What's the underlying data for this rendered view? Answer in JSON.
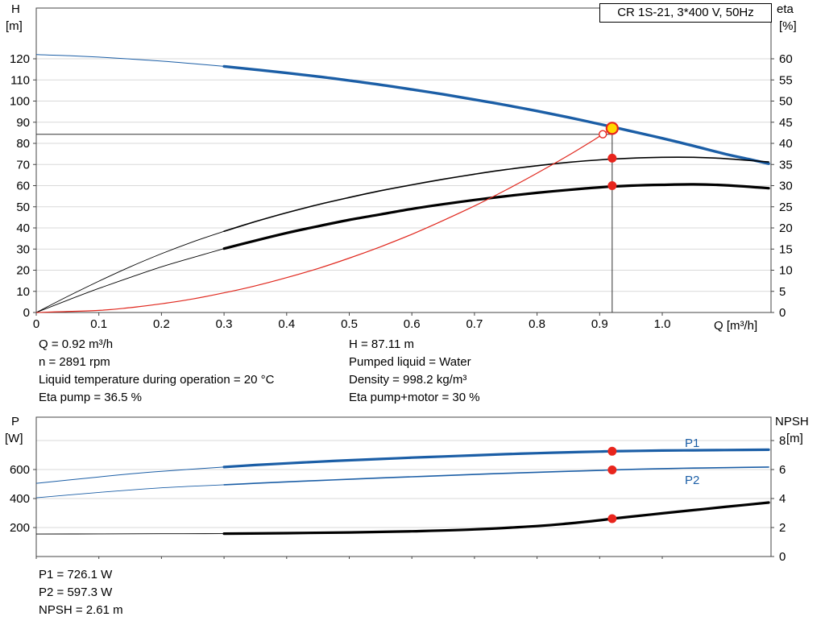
{
  "axes": {
    "top_left_label": "H",
    "top_left_unit": "[m]",
    "top_right_label": "eta",
    "top_right_unit": "[%]",
    "top_x_label": "Q [m³/h]",
    "bottom_left_label": "P",
    "bottom_left_unit": "[W]",
    "bottom_right_label": "NPSH",
    "bottom_right_unit": "[m]"
  },
  "info_top_left": [
    "Q = 0.92 m³/h",
    "n = 2891 rpm",
    "Liquid temperature during operation = 20 °C",
    "Eta pump = 36.5 %"
  ],
  "info_top_right": [
    "H = 87.11 m",
    "Pumped liquid = Water",
    "Density = 998.2 kg/m³",
    "Eta pump+motor = 30 %"
  ],
  "info_bottom": [
    "P1 = 726.1 W",
    "P2 = 597.3 W",
    "NPSH = 2.61 m"
  ],
  "colors": {
    "curve_blue": "#1b5ea6",
    "curve_black": "#000000",
    "curve_red": "#e0281e",
    "marker_red": "#e8251d",
    "duty_yellow": "#ffd800",
    "grid": "#d9d9d9",
    "frame": "#444444"
  },
  "chart_data": [
    {
      "type": "line",
      "title": "CR 1S-21, 3*400 V, 50Hz",
      "xlabel": "Q [m³/h]",
      "xlim": [
        0,
        1.174
      ],
      "x_ticks": [
        0,
        0.1,
        0.2,
        0.3,
        0.4,
        0.5,
        0.6,
        0.7,
        0.8,
        0.9,
        1.0
      ],
      "x_tick_labels": [
        "0",
        "0.1",
        "0.2",
        "0.3",
        "0.4",
        "0.5",
        "0.6",
        "0.7",
        "0.8",
        "0.9",
        "1.0"
      ],
      "left_axis": {
        "label": "H [m]",
        "ticks": [
          0,
          10,
          20,
          30,
          40,
          50,
          60,
          70,
          80,
          90,
          100,
          110,
          120
        ],
        "lim": [
          0,
          144
        ]
      },
      "right_axis": {
        "label": "eta [%]",
        "ticks": [
          0,
          5,
          10,
          15,
          20,
          25,
          30,
          35,
          40,
          45,
          50,
          55,
          60
        ],
        "lim": [
          0,
          72
        ]
      },
      "grid": "horizontal",
      "series": [
        {
          "name": "H",
          "axis": "left",
          "color_key": "curve_blue",
          "width": 3.4,
          "thin_until": 0.3,
          "thin_width": 1,
          "points": [
            [
              0,
              122
            ],
            [
              0.05,
              121.5
            ],
            [
              0.1,
              120.8
            ],
            [
              0.15,
              119.9
            ],
            [
              0.2,
              118.9
            ],
            [
              0.25,
              117.7
            ],
            [
              0.3,
              116.4
            ],
            [
              0.35,
              114.9
            ],
            [
              0.4,
              113.3
            ],
            [
              0.45,
              111.6
            ],
            [
              0.5,
              109.7
            ],
            [
              0.55,
              107.7
            ],
            [
              0.6,
              105.5
            ],
            [
              0.65,
              103.2
            ],
            [
              0.7,
              100.7
            ],
            [
              0.75,
              98.1
            ],
            [
              0.8,
              95.3
            ],
            [
              0.85,
              92.3
            ],
            [
              0.9,
              89.1
            ],
            [
              0.92,
              87.8
            ],
            [
              0.95,
              85.8
            ],
            [
              1,
              82.4
            ],
            [
              1.05,
              78.8
            ],
            [
              1.1,
              75
            ],
            [
              1.14,
              72.4
            ],
            [
              1.17,
              70.4
            ]
          ]
        },
        {
          "name": "eta pump",
          "axis": "right",
          "color_key": "curve_black",
          "width": 1.6,
          "thin_until": 0.3,
          "thin_width": 0.9,
          "points": [
            [
              0,
              0
            ],
            [
              0.05,
              3.8
            ],
            [
              0.1,
              7.4
            ],
            [
              0.15,
              10.8
            ],
            [
              0.2,
              13.9
            ],
            [
              0.25,
              16.7
            ],
            [
              0.3,
              19.2
            ],
            [
              0.35,
              21.5
            ],
            [
              0.4,
              23.6
            ],
            [
              0.45,
              25.5
            ],
            [
              0.5,
              27.2
            ],
            [
              0.55,
              28.8
            ],
            [
              0.6,
              30.2
            ],
            [
              0.65,
              31.5
            ],
            [
              0.7,
              32.7
            ],
            [
              0.75,
              33.8
            ],
            [
              0.8,
              34.7
            ],
            [
              0.85,
              35.5
            ],
            [
              0.9,
              36.1
            ],
            [
              0.95,
              36.5
            ],
            [
              1,
              36.7
            ],
            [
              1.05,
              36.7
            ],
            [
              1.1,
              36.4
            ],
            [
              1.17,
              35.6
            ]
          ]
        },
        {
          "name": "eta pump+motor",
          "axis": "right",
          "color_key": "curve_black",
          "width": 3.2,
          "thin_until": 0.3,
          "thin_width": 0.9,
          "points": [
            [
              0,
              0
            ],
            [
              0.05,
              2.9
            ],
            [
              0.1,
              5.7
            ],
            [
              0.15,
              8.3
            ],
            [
              0.2,
              10.8
            ],
            [
              0.25,
              13
            ],
            [
              0.3,
              15.1
            ],
            [
              0.35,
              17
            ],
            [
              0.4,
              18.8
            ],
            [
              0.45,
              20.4
            ],
            [
              0.5,
              21.9
            ],
            [
              0.55,
              23.2
            ],
            [
              0.6,
              24.5
            ],
            [
              0.65,
              25.6
            ],
            [
              0.7,
              26.6
            ],
            [
              0.75,
              27.5
            ],
            [
              0.8,
              28.3
            ],
            [
              0.85,
              29
            ],
            [
              0.9,
              29.6
            ],
            [
              0.95,
              30
            ],
            [
              1,
              30.2
            ],
            [
              1.05,
              30.3
            ],
            [
              1.1,
              30.1
            ],
            [
              1.17,
              29.4
            ]
          ]
        },
        {
          "name": "system curve",
          "axis": "left",
          "color_key": "curve_red",
          "width": 1.2,
          "points": [
            [
              0,
              0
            ],
            [
              0.1,
              1
            ],
            [
              0.15,
              2.3
            ],
            [
              0.2,
              4.1
            ],
            [
              0.25,
              6.4
            ],
            [
              0.3,
              9.3
            ],
            [
              0.35,
              12.6
            ],
            [
              0.4,
              16.5
            ],
            [
              0.45,
              20.8
            ],
            [
              0.5,
              25.7
            ],
            [
              0.55,
              31.1
            ],
            [
              0.6,
              37
            ],
            [
              0.65,
              43.5
            ],
            [
              0.7,
              50.4
            ],
            [
              0.75,
              57.9
            ],
            [
              0.8,
              65.9
            ],
            [
              0.85,
              74.3
            ],
            [
              0.9,
              83.3
            ],
            [
              0.92,
              87.1
            ]
          ]
        }
      ],
      "guides": {
        "q": 0.92,
        "h": 84.3,
        "v_top": 87.11
      },
      "markers": [
        {
          "q": 0.905,
          "value": 84.3,
          "axis": "left",
          "style": "open"
        },
        {
          "q": 0.92,
          "value": 36.5,
          "axis": "right",
          "style": "dot"
        },
        {
          "q": 0.92,
          "value": 30,
          "axis": "right",
          "style": "dot"
        },
        {
          "q": 0.92,
          "value": 87.11,
          "axis": "left",
          "style": "duty"
        }
      ]
    },
    {
      "type": "line",
      "title": "",
      "xlabel": "",
      "xlim": [
        0,
        1.174
      ],
      "x_ticks": [
        0,
        0.1,
        0.2,
        0.3,
        0.4,
        0.5,
        0.6,
        0.7,
        0.8,
        0.9,
        1.0
      ],
      "x_tick_labels": [],
      "left_axis": {
        "label": "P [W]",
        "ticks": [
          200,
          400,
          600
        ],
        "lim": [
          0,
          961
        ]
      },
      "right_axis": {
        "label": "NPSH [m]",
        "ticks": [
          0,
          2,
          4,
          6,
          8
        ],
        "lim": [
          0,
          9.61
        ]
      },
      "grid": "horizontal",
      "series": [
        {
          "name": "P1",
          "axis": "left",
          "color_key": "curve_blue",
          "width": 3.2,
          "thin_until": 0.3,
          "thin_width": 1,
          "points": [
            [
              0,
              505
            ],
            [
              0.05,
              527
            ],
            [
              0.1,
              549
            ],
            [
              0.15,
              570
            ],
            [
              0.2,
              588
            ],
            [
              0.25,
              603
            ],
            [
              0.3,
              617
            ],
            [
              0.35,
              631
            ],
            [
              0.4,
              643
            ],
            [
              0.45,
              654
            ],
            [
              0.5,
              664
            ],
            [
              0.55,
              673
            ],
            [
              0.6,
              682
            ],
            [
              0.65,
              690
            ],
            [
              0.7,
              698
            ],
            [
              0.75,
              706
            ],
            [
              0.8,
              713
            ],
            [
              0.85,
              719
            ],
            [
              0.9,
              724
            ],
            [
              0.92,
              726.1
            ],
            [
              1,
              731
            ],
            [
              1.05,
              733
            ],
            [
              1.1,
              734.5
            ],
            [
              1.17,
              736.5
            ]
          ]
        },
        {
          "name": "P2",
          "axis": "left",
          "color_key": "curve_blue",
          "width": 1.6,
          "thin_until": 0.3,
          "thin_width": 0.9,
          "points": [
            [
              0,
              405
            ],
            [
              0.05,
              424
            ],
            [
              0.1,
              442
            ],
            [
              0.15,
              459
            ],
            [
              0.2,
              474
            ],
            [
              0.25,
              485
            ],
            [
              0.3,
              495
            ],
            [
              0.35,
              505
            ],
            [
              0.4,
              515
            ],
            [
              0.45,
              524
            ],
            [
              0.5,
              533
            ],
            [
              0.55,
              542
            ],
            [
              0.6,
              550
            ],
            [
              0.65,
              558
            ],
            [
              0.7,
              566
            ],
            [
              0.75,
              574
            ],
            [
              0.8,
              581
            ],
            [
              0.85,
              588
            ],
            [
              0.9,
              594
            ],
            [
              0.92,
              597.3
            ],
            [
              1,
              606
            ],
            [
              1.05,
              610
            ],
            [
              1.1,
              613
            ],
            [
              1.17,
              617
            ]
          ]
        },
        {
          "name": "NPSH",
          "axis": "right",
          "color_key": "curve_black",
          "width": 3.2,
          "thin_until": 0.3,
          "thin_width": 0.9,
          "points": [
            [
              0,
              1.55
            ],
            [
              0.1,
              1.56
            ],
            [
              0.2,
              1.57
            ],
            [
              0.3,
              1.58
            ],
            [
              0.4,
              1.61
            ],
            [
              0.5,
              1.66
            ],
            [
              0.6,
              1.74
            ],
            [
              0.7,
              1.87
            ],
            [
              0.8,
              2.1
            ],
            [
              0.85,
              2.28
            ],
            [
              0.9,
              2.5
            ],
            [
              0.92,
              2.61
            ],
            [
              0.95,
              2.75
            ],
            [
              1,
              2.98
            ],
            [
              1.05,
              3.2
            ],
            [
              1.1,
              3.42
            ],
            [
              1.17,
              3.72
            ]
          ]
        }
      ],
      "markers": [
        {
          "q": 0.92,
          "value": 726.1,
          "axis": "left",
          "style": "dot"
        },
        {
          "q": 0.92,
          "value": 597.3,
          "axis": "left",
          "style": "dot"
        },
        {
          "q": 0.92,
          "value": 2.61,
          "axis": "right",
          "style": "dot"
        }
      ]
    }
  ]
}
